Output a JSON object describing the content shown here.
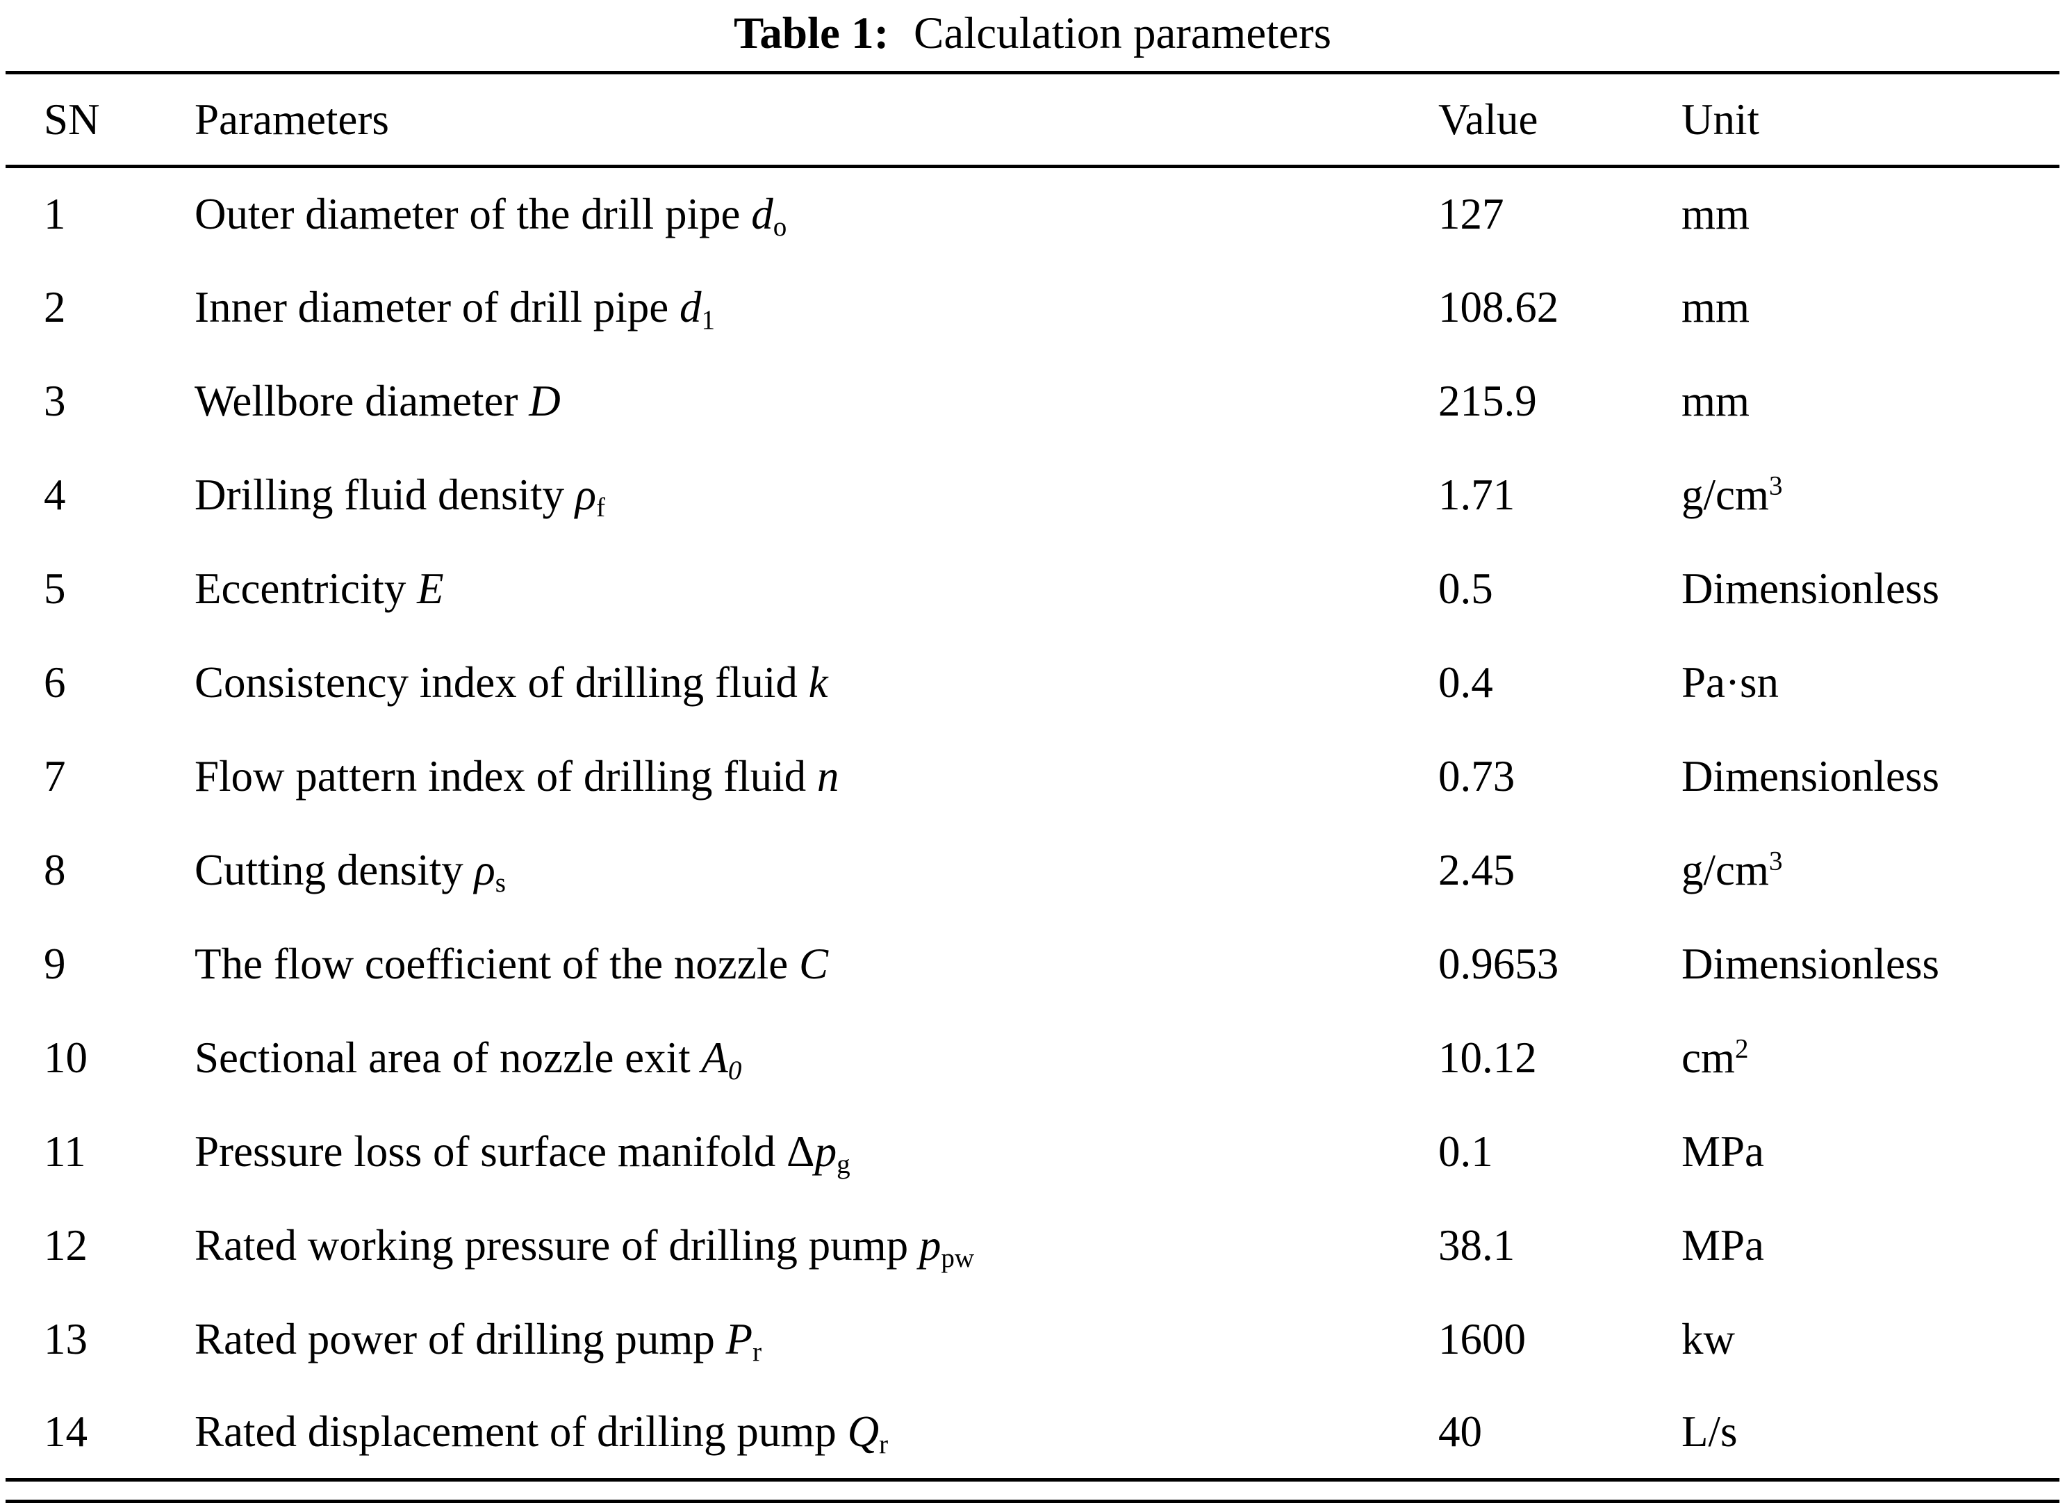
{
  "caption": {
    "label": "Table 1:",
    "title": "Calculation parameters"
  },
  "table": {
    "columns": [
      "SN",
      "Parameters",
      "Value",
      "Unit"
    ],
    "rows": [
      {
        "sn": "1",
        "param": [
          {
            "t": "Outer diameter of the drill pipe "
          },
          {
            "t": "d",
            "s": "i"
          },
          {
            "t": "o",
            "s": "sub"
          }
        ],
        "value": "127",
        "unit": [
          {
            "t": "mm"
          }
        ]
      },
      {
        "sn": "2",
        "param": [
          {
            "t": "Inner diameter of drill pipe "
          },
          {
            "t": "d",
            "s": "i"
          },
          {
            "t": "1",
            "s": "sub"
          }
        ],
        "value": "108.62",
        "unit": [
          {
            "t": "mm"
          }
        ]
      },
      {
        "sn": "3",
        "param": [
          {
            "t": "Wellbore diameter "
          },
          {
            "t": "D",
            "s": "i"
          }
        ],
        "value": "215.9",
        "unit": [
          {
            "t": "mm"
          }
        ]
      },
      {
        "sn": "4",
        "param": [
          {
            "t": "Drilling fluid density "
          },
          {
            "t": "ρ",
            "s": "i"
          },
          {
            "t": "f",
            "s": "sub"
          }
        ],
        "value": "1.71",
        "unit": [
          {
            "t": "g/cm"
          },
          {
            "t": "3",
            "s": "sup"
          }
        ]
      },
      {
        "sn": "5",
        "param": [
          {
            "t": "Eccentricity "
          },
          {
            "t": "E",
            "s": "i"
          }
        ],
        "value": "0.5",
        "unit": [
          {
            "t": "Dimensionless"
          }
        ]
      },
      {
        "sn": "6",
        "param": [
          {
            "t": "Consistency index of drilling fluid "
          },
          {
            "t": "k",
            "s": "i"
          }
        ],
        "value": "0.4",
        "unit": [
          {
            "t": "Pa·sn"
          }
        ]
      },
      {
        "sn": "7",
        "param": [
          {
            "t": "Flow pattern index of drilling fluid "
          },
          {
            "t": "n",
            "s": "i"
          }
        ],
        "value": "0.73",
        "unit": [
          {
            "t": "Dimensionless"
          }
        ]
      },
      {
        "sn": "8",
        "param": [
          {
            "t": "Cutting density "
          },
          {
            "t": "ρ",
            "s": "i"
          },
          {
            "t": "s",
            "s": "sub"
          }
        ],
        "value": "2.45",
        "unit": [
          {
            "t": "g/cm"
          },
          {
            "t": "3",
            "s": "sup"
          }
        ]
      },
      {
        "sn": "9",
        "param": [
          {
            "t": "The flow coefficient of the nozzle "
          },
          {
            "t": "C",
            "s": "i"
          }
        ],
        "value": "0.9653",
        "unit": [
          {
            "t": "Dimensionless"
          }
        ]
      },
      {
        "sn": "10",
        "param": [
          {
            "t": "Sectional area of nozzle exit "
          },
          {
            "t": "A",
            "s": "i"
          },
          {
            "t": "0",
            "s": "isub"
          }
        ],
        "value": "10.12",
        "unit": [
          {
            "t": "cm"
          },
          {
            "t": "2",
            "s": "sup"
          }
        ]
      },
      {
        "sn": "11",
        "param": [
          {
            "t": "Pressure loss of surface manifold Δ"
          },
          {
            "t": "p",
            "s": "i"
          },
          {
            "t": "g",
            "s": "sub"
          }
        ],
        "value": "0.1",
        "unit": [
          {
            "t": "MPa"
          }
        ]
      },
      {
        "sn": "12",
        "param": [
          {
            "t": "Rated working pressure of drilling pump "
          },
          {
            "t": "p",
            "s": "i"
          },
          {
            "t": "pw",
            "s": "sub"
          }
        ],
        "value": "38.1",
        "unit": [
          {
            "t": "MPa"
          }
        ]
      },
      {
        "sn": "13",
        "param": [
          {
            "t": "Rated power of drilling pump "
          },
          {
            "t": "P",
            "s": "i"
          },
          {
            "t": "r",
            "s": "sub"
          }
        ],
        "value": "1600",
        "unit": [
          {
            "t": "kw"
          }
        ]
      },
      {
        "sn": "14",
        "param": [
          {
            "t": "Rated displacement of drilling pump "
          },
          {
            "t": "Q",
            "s": "i"
          },
          {
            "t": "r",
            "s": "sub"
          }
        ],
        "value": "40",
        "unit": [
          {
            "t": "L/s"
          }
        ]
      }
    ]
  }
}
